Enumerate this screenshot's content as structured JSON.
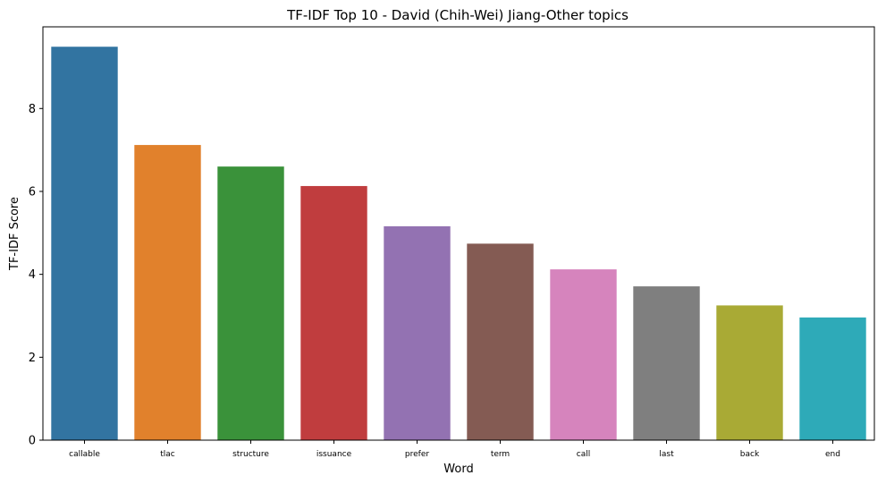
{
  "chart_data": {
    "type": "bar",
    "title": "TF-IDF Top 10 - David (Chih-Wei) Jiang-Other topics",
    "xlabel": "Word",
    "ylabel": "TF-IDF Score",
    "categories": [
      "callable",
      "tlac",
      "structure",
      "issuance",
      "prefer",
      "term",
      "call",
      "last",
      "back",
      "end"
    ],
    "values": [
      9.49,
      7.12,
      6.6,
      6.13,
      5.16,
      4.74,
      4.12,
      3.71,
      3.25,
      2.96
    ],
    "colors": [
      "#3274a1",
      "#e1812c",
      "#3a923a",
      "#c03d3e",
      "#9372b2",
      "#845b53",
      "#d684bd",
      "#7f7f7f",
      "#a9aa35",
      "#2eaab8"
    ],
    "ylim": [
      0,
      9.97
    ],
    "yticks": [
      0,
      2,
      4,
      6,
      8
    ],
    "grid": false,
    "legend": "none"
  }
}
